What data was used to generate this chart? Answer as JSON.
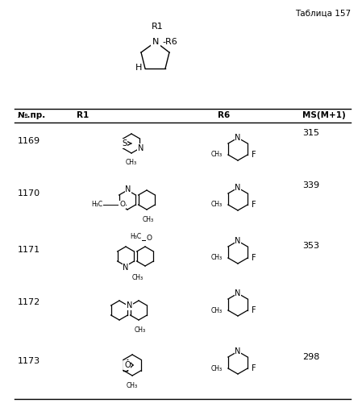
{
  "title": "Таблица 157",
  "background_color": "#ffffff",
  "header": [
    "№.пр.",
    "R1",
    "R6",
    "MS(M+1)"
  ],
  "rows": [
    {
      "id": "1169",
      "ms": "315"
    },
    {
      "id": "1170",
      "ms": "339"
    },
    {
      "id": "1171",
      "ms": "353"
    },
    {
      "id": "1172",
      "ms": ""
    },
    {
      "id": "1173",
      "ms": "298"
    }
  ],
  "figsize": [
    4.49,
    5.0
  ],
  "dpi": 100
}
